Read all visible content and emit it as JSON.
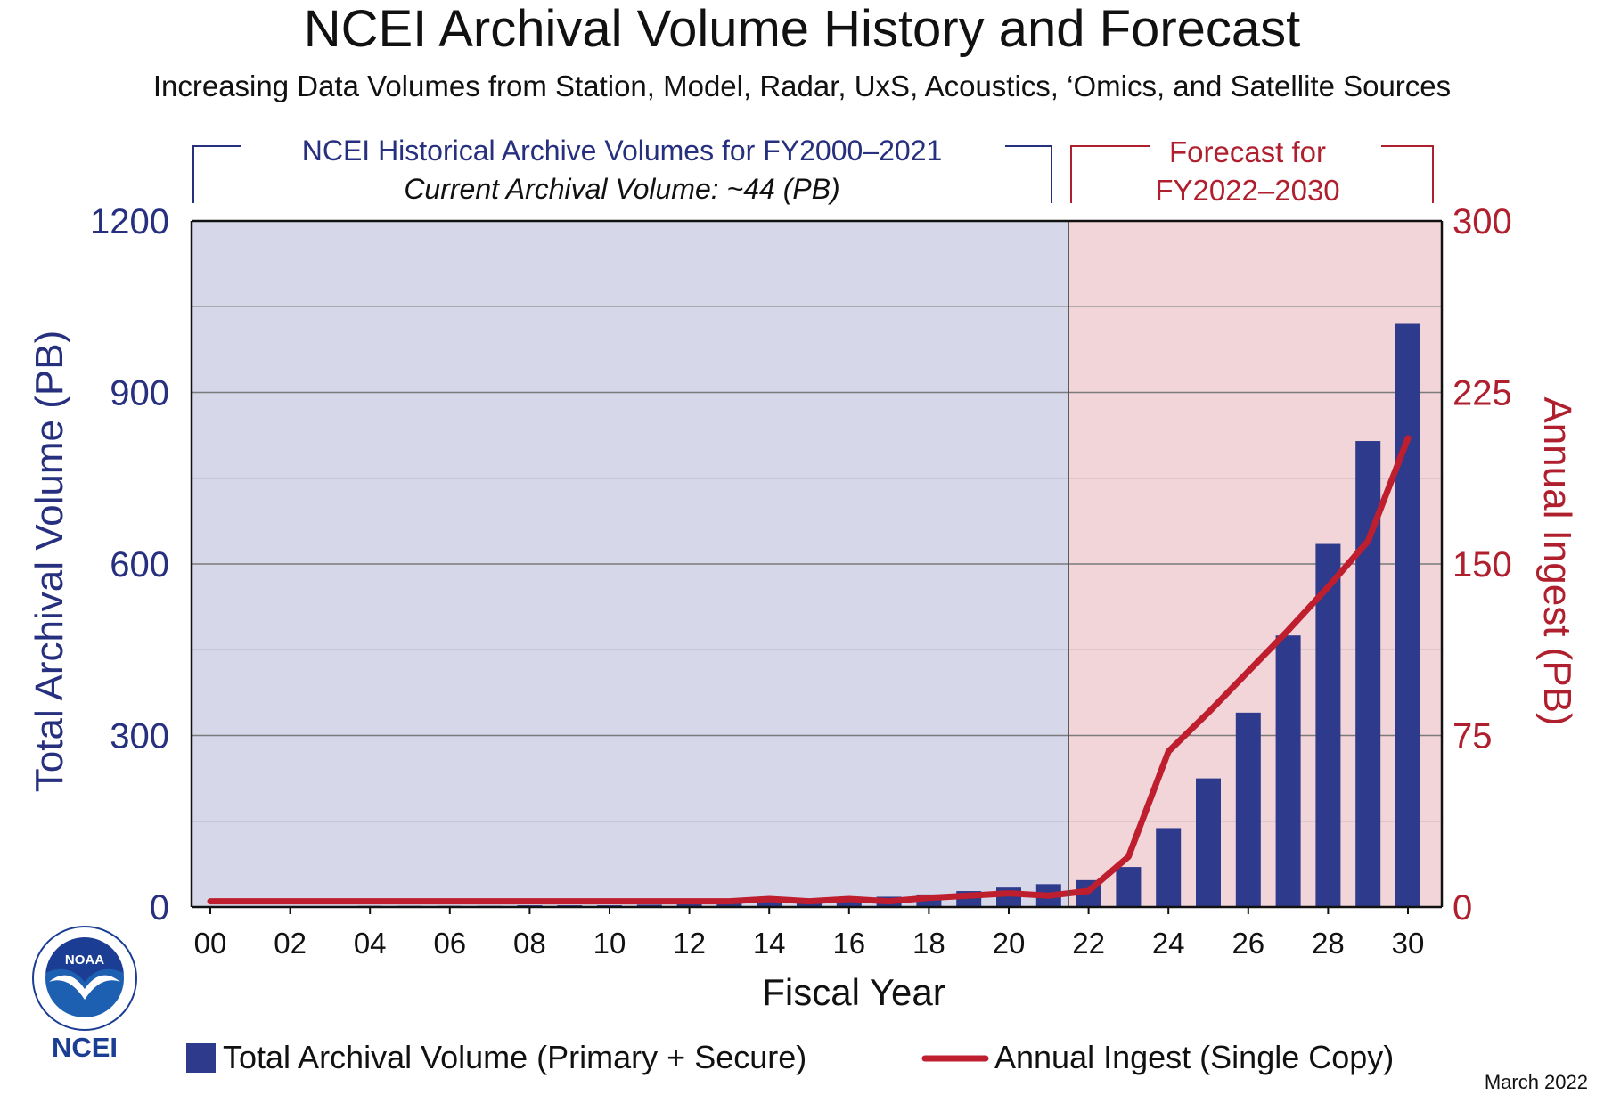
{
  "header": {
    "title": "NCEI Archival Volume History and Forecast",
    "subtitle": "Increasing Data Volumes from Station, Model, Radar, UxS, Acoustics, ‘Omics, and Satellite Sources"
  },
  "periods": {
    "historical": {
      "line1": "NCEI Historical Archive Volumes for FY2000–2021",
      "line2": "Current Archival Volume: ~44 (PB)"
    },
    "forecast": {
      "line1": "Forecast for",
      "line2": "FY2022–2030"
    }
  },
  "footer": {
    "date": "March 2022",
    "logo_text": "NCEI",
    "seal_text": "NOAA"
  },
  "colors": {
    "bar": "#2e3a8c",
    "line": "#be1e2d",
    "historical_bg": "#d6d8e9",
    "forecast_bg": "#f2d5d8",
    "left_axis_text": "#27307f",
    "right_axis_text": "#b01f2e"
  },
  "chart_data": {
    "type": "bar",
    "title": "NCEI Archival Volume History and Forecast",
    "xlabel": "Fiscal Year",
    "ylabel": "Total Archival Volume (PB)",
    "y2label": "Annual Ingest (PB)",
    "x": [
      "00",
      "01",
      "02",
      "03",
      "04",
      "05",
      "06",
      "07",
      "08",
      "09",
      "10",
      "11",
      "12",
      "13",
      "14",
      "15",
      "16",
      "17",
      "18",
      "19",
      "20",
      "21",
      "22",
      "23",
      "24",
      "25",
      "26",
      "27",
      "28",
      "29",
      "30"
    ],
    "x_tick_labels": [
      "00",
      "02",
      "04",
      "06",
      "08",
      "10",
      "12",
      "14",
      "16",
      "18",
      "20",
      "22",
      "24",
      "26",
      "28",
      "30"
    ],
    "ylim": [
      0,
      1200
    ],
    "y_ticks": [
      0,
      300,
      600,
      900,
      1200
    ],
    "y2lim": [
      0,
      300
    ],
    "y2_ticks": [
      0,
      75,
      150,
      225,
      300
    ],
    "grid": true,
    "legend_position": "bottom",
    "series": [
      {
        "name": "Total Archival Volume (Primary + Secure)",
        "type": "bar",
        "axis": "left",
        "values": [
          1,
          1,
          1,
          1,
          2,
          2,
          2,
          2,
          3,
          3,
          3,
          4,
          5,
          7,
          9,
          11,
          14,
          18,
          22,
          28,
          34,
          40,
          47,
          70,
          138,
          225,
          340,
          475,
          635,
          815,
          1020
        ]
      },
      {
        "name": "Annual Ingest (Single Copy)",
        "type": "line",
        "axis": "right",
        "values": [
          2.5,
          2.5,
          2.5,
          2.5,
          2.5,
          2.5,
          2.5,
          2.5,
          2.5,
          2.5,
          2.5,
          2.5,
          2.5,
          2.5,
          3.5,
          2.5,
          3.5,
          2.5,
          4,
          5,
          6,
          5,
          7,
          22,
          68,
          85,
          103,
          121,
          140,
          160,
          205
        ]
      }
    ]
  }
}
